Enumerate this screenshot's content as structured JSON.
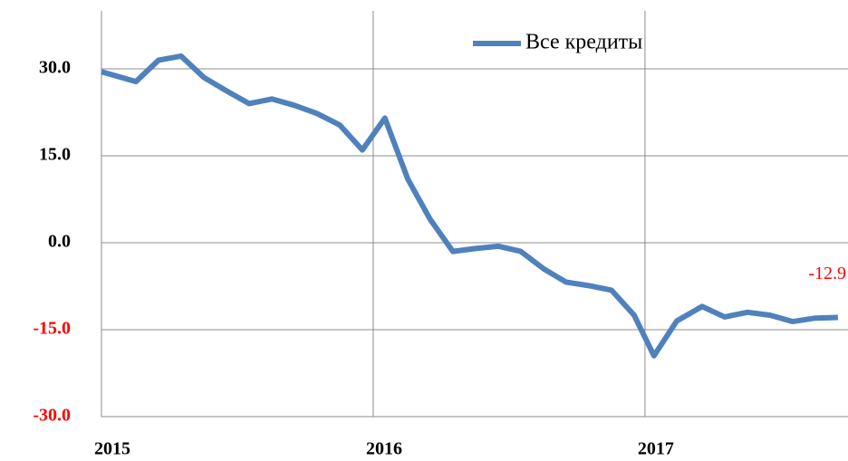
{
  "chart_data": {
    "type": "line",
    "x": [
      2015,
      2015.127,
      2015.21,
      2015.293,
      2015.377,
      2015.46,
      2015.543,
      2015.627,
      2015.71,
      2015.793,
      2015.877,
      2015.96,
      2016.043,
      2016.127,
      2016.21,
      2016.293,
      2016.377,
      2016.46,
      2016.543,
      2016.627,
      2016.71,
      2016.793,
      2016.877,
      2016.96,
      2017.033,
      2017.117,
      2017.21,
      2017.293,
      2017.377,
      2017.46,
      2017.543,
      2017.627,
      2017.71
    ],
    "series": [
      {
        "name": "Все кредиты",
        "color": "#4f81bd",
        "values": [
          29.5,
          27.8,
          31.5,
          32.2,
          28.5,
          26.2,
          24,
          24.8,
          23.7,
          22.3,
          20.3,
          16,
          21.5,
          11,
          4,
          -1.5,
          -1,
          -0.6,
          -1.5,
          -4.5,
          -6.8,
          -7.4,
          -8.2,
          -12.5,
          -19.5,
          -13.5,
          -11,
          -12.8,
          -12,
          -12.5,
          -13.6,
          -13,
          -12.9
        ]
      }
    ],
    "annotations": [
      {
        "text": "-12.9",
        "color": "#ff0000"
      }
    ],
    "xlim": [
      2015,
      2017.747
    ],
    "xticks": [
      2015,
      2016,
      2017
    ],
    "ylim": [
      -30,
      40
    ],
    "yticks": [
      {
        "value": -30,
        "label": "-30.0"
      },
      {
        "value": -15,
        "label": "-15.0"
      },
      {
        "value": 0,
        "label": "0.0"
      },
      {
        "value": 15,
        "label": "15.0"
      },
      {
        "value": 30,
        "label": "30.0"
      }
    ],
    "ytick_label_colors": [
      "#ff0000",
      "#ff0000",
      "#000000",
      "#000000",
      "#000000"
    ],
    "grid": true,
    "legend": "upper right"
  }
}
